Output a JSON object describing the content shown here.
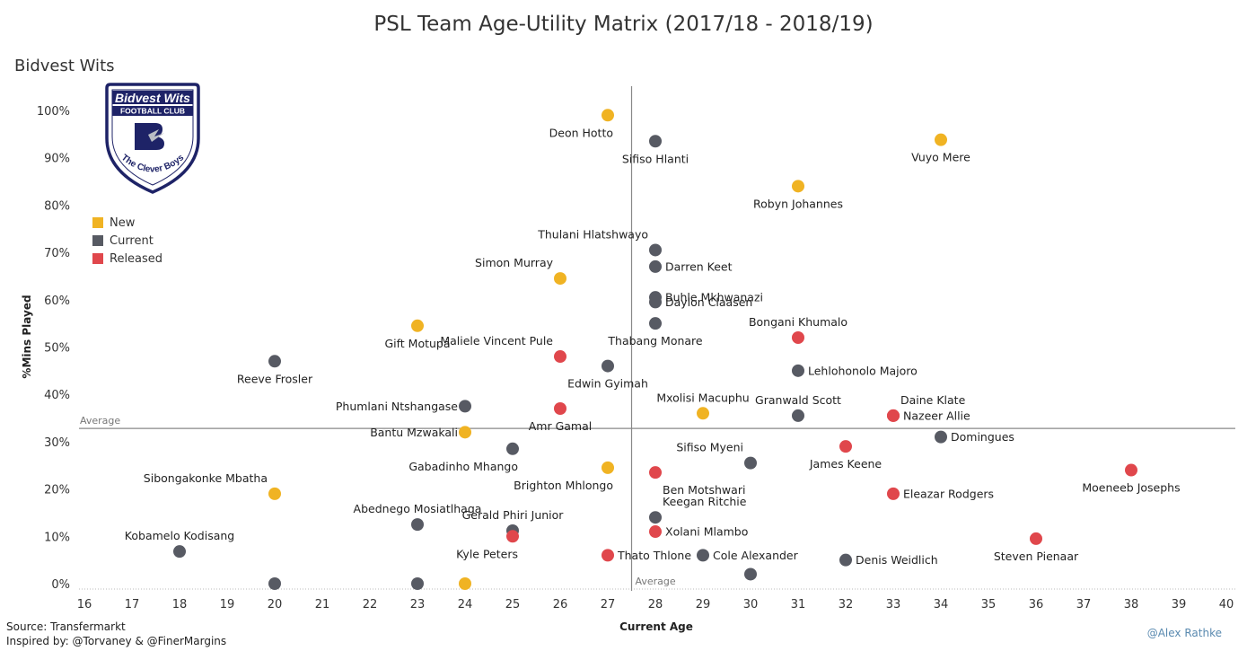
{
  "title": "PSL Team Age-Utility Matrix (2017/18 - 2018/19)",
  "team": "Bidvest Wits",
  "logo": {
    "line1": "Bidvest Wits",
    "line2": "FOOTBALL CLUB",
    "motto": "The Clever Boys"
  },
  "legend": [
    {
      "key": "new",
      "label": "New",
      "color": "#f0b323"
    },
    {
      "key": "current",
      "label": "Current",
      "color": "#575a63"
    },
    {
      "key": "released",
      "label": "Released",
      "color": "#e0474c"
    }
  ],
  "footer": {
    "source": "Source: Transfermarkt",
    "inspired": "Inspired by: @Torvaney & @FinerMargins",
    "author": "@Alex Rathke"
  },
  "chart_data": {
    "type": "scatter",
    "xlabel": "Current Age",
    "ylabel": "%Mins Played",
    "xlim": [
      16,
      40
    ],
    "ylim": [
      0,
      100
    ],
    "xticks": [
      16,
      17,
      18,
      19,
      20,
      21,
      22,
      23,
      24,
      25,
      26,
      27,
      28,
      29,
      30,
      31,
      32,
      33,
      34,
      35,
      36,
      37,
      38,
      39,
      40
    ],
    "yticks": [
      0,
      10,
      20,
      30,
      40,
      50,
      60,
      70,
      80,
      90,
      100
    ],
    "average_x": 27.5,
    "average_y": 32.8,
    "average_label": "Average",
    "points": [
      {
        "name": "Deon Hotto",
        "age": 27,
        "pct": 99,
        "status": "new",
        "anchor": "left",
        "pos": "below"
      },
      {
        "name": "Sifiso Hlanti",
        "age": 28,
        "pct": 93.5,
        "status": "current",
        "anchor": "middle",
        "pos": "below"
      },
      {
        "name": "Vuyo Mere",
        "age": 34,
        "pct": 93.8,
        "status": "new",
        "anchor": "middle",
        "pos": "below"
      },
      {
        "name": "Robyn Johannes",
        "age": 31,
        "pct": 84,
        "status": "new",
        "anchor": "middle",
        "pos": "below"
      },
      {
        "name": "Thulani Hlatshwayo",
        "age": 28,
        "pct": 70.5,
        "status": "current",
        "anchor": "left",
        "pos": "above"
      },
      {
        "name": "Darren Keet",
        "age": 28,
        "pct": 67,
        "status": "current",
        "anchor": "right",
        "pos": "mid"
      },
      {
        "name": "Simon Murray",
        "age": 26,
        "pct": 64.5,
        "status": "new",
        "anchor": "left",
        "pos": "above"
      },
      {
        "name": "Buhle Mkhwanazi",
        "age": 28,
        "pct": 60.5,
        "status": "current",
        "anchor": "right",
        "pos": "mid"
      },
      {
        "name": "Daylon Claasen",
        "age": 28,
        "pct": 59.5,
        "status": "current",
        "anchor": "right",
        "pos": "mid"
      },
      {
        "name": "Bongani Khumalo",
        "age": 31,
        "pct": 52,
        "status": "released",
        "anchor": "middle",
        "pos": "above"
      },
      {
        "name": "Thabang Monare",
        "age": 28,
        "pct": 55,
        "status": "current",
        "anchor": "middle",
        "pos": "below"
      },
      {
        "name": "Gift Motupa",
        "age": 23,
        "pct": 54.5,
        "status": "new",
        "anchor": "middle",
        "pos": "below"
      },
      {
        "name": "Maliele Vincent Pule",
        "age": 26,
        "pct": 48,
        "status": "released",
        "anchor": "left",
        "pos": "above"
      },
      {
        "name": "Reeve Frosler",
        "age": 20,
        "pct": 47,
        "status": "current",
        "anchor": "middle",
        "pos": "below"
      },
      {
        "name": "Edwin Gyimah",
        "age": 27,
        "pct": 46,
        "status": "current",
        "anchor": "middle",
        "pos": "below"
      },
      {
        "name": "Lehlohonolo Majoro",
        "age": 31,
        "pct": 45,
        "status": "current",
        "anchor": "right",
        "pos": "mid"
      },
      {
        "name": "Mxolisi Macuphu",
        "age": 29,
        "pct": 36,
        "status": "new",
        "anchor": "middle",
        "pos": "above"
      },
      {
        "name": "Granwald Scott",
        "age": 31,
        "pct": 35.5,
        "status": "current",
        "anchor": "middle",
        "pos": "above"
      },
      {
        "name": "Daine Klate",
        "age": 33,
        "pct": 35.5,
        "status": "released",
        "anchor": "right",
        "pos": "above"
      },
      {
        "name": "Nazeer Allie",
        "age": 33,
        "pct": 35.5,
        "status": "released",
        "anchor": "right",
        "pos": "mid"
      },
      {
        "name": "Phumlani Ntshangase",
        "age": 24,
        "pct": 37.5,
        "status": "current",
        "anchor": "left",
        "pos": "mid"
      },
      {
        "name": "Amr Gamal",
        "age": 26,
        "pct": 37,
        "status": "released",
        "anchor": "middle",
        "pos": "below"
      },
      {
        "name": "Bantu Mzwakali",
        "age": 24,
        "pct": 32,
        "status": "new",
        "anchor": "left",
        "pos": "mid"
      },
      {
        "name": "Domingues",
        "age": 34,
        "pct": 31,
        "status": "current",
        "anchor": "right",
        "pos": "mid"
      },
      {
        "name": "James Keene",
        "age": 32,
        "pct": 29,
        "status": "released",
        "anchor": "middle",
        "pos": "below"
      },
      {
        "name": "Gabadinho Mhango",
        "age": 25,
        "pct": 28.5,
        "status": "current",
        "anchor": "left",
        "pos": "below"
      },
      {
        "name": "Sifiso Myeni",
        "age": 30,
        "pct": 25.5,
        "status": "current",
        "anchor": "left",
        "pos": "above"
      },
      {
        "name": "Brighton Mhlongo",
        "age": 27,
        "pct": 24.5,
        "status": "new",
        "anchor": "left",
        "pos": "below"
      },
      {
        "name": "Ben Motshwari",
        "age": 28,
        "pct": 23.5,
        "status": "released",
        "anchor": "right",
        "pos": "below"
      },
      {
        "name": "Moeneeb Josephs",
        "age": 38,
        "pct": 24,
        "status": "released",
        "anchor": "middle",
        "pos": "below"
      },
      {
        "name": "Sibongakonke Mbatha",
        "age": 20,
        "pct": 19,
        "status": "new",
        "anchor": "left",
        "pos": "above"
      },
      {
        "name": "Eleazar Rodgers",
        "age": 33,
        "pct": 19,
        "status": "released",
        "anchor": "right",
        "pos": "mid"
      },
      {
        "name": "Abednego Mosiatlhaga",
        "age": 23,
        "pct": 12.5,
        "status": "current",
        "anchor": "middle",
        "pos": "above"
      },
      {
        "name": "Keegan Ritchie",
        "age": 28,
        "pct": 14,
        "status": "current",
        "anchor": "right",
        "pos": "above"
      },
      {
        "name": "Gerald Phiri Junior",
        "age": 25,
        "pct": 11.2,
        "status": "current",
        "anchor": "middle",
        "pos": "above"
      },
      {
        "name": "Kyle Peters",
        "age": 25,
        "pct": 10,
        "status": "released",
        "anchor": "left",
        "pos": "below"
      },
      {
        "name": "Xolani Mlambo",
        "age": 28,
        "pct": 11,
        "status": "released",
        "anchor": "right",
        "pos": "mid"
      },
      {
        "name": "Kobamelo Kodisang",
        "age": 18,
        "pct": 6.8,
        "status": "current",
        "anchor": "middle",
        "pos": "above"
      },
      {
        "name": "Steven Pienaar",
        "age": 36,
        "pct": 9.5,
        "status": "released",
        "anchor": "middle",
        "pos": "below"
      },
      {
        "name": "Thato Thlone",
        "age": 27,
        "pct": 6,
        "status": "released",
        "anchor": "right",
        "pos": "mid"
      },
      {
        "name": "Cole Alexander",
        "age": 29,
        "pct": 6,
        "status": "current",
        "anchor": "right",
        "pos": "mid"
      },
      {
        "name": "Denis Weidlich",
        "age": 32,
        "pct": 5,
        "status": "current",
        "anchor": "right",
        "pos": "mid"
      },
      {
        "name": "",
        "age": 30,
        "pct": 2,
        "status": "current",
        "anchor": "middle",
        "pos": "none"
      },
      {
        "name": "",
        "age": 20,
        "pct": 0,
        "status": "current",
        "anchor": "middle",
        "pos": "none"
      },
      {
        "name": "",
        "age": 23,
        "pct": 0,
        "status": "current",
        "anchor": "middle",
        "pos": "none"
      },
      {
        "name": "",
        "age": 24,
        "pct": 0,
        "status": "new",
        "anchor": "middle",
        "pos": "none"
      }
    ]
  }
}
